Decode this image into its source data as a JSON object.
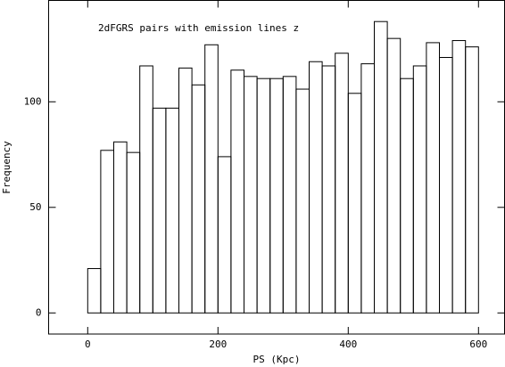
{
  "chart_data": {
    "type": "histogram",
    "title": "2dFGRS pairs with emission lines z",
    "xlabel": "PS (Kpc)",
    "ylabel": "Frequency",
    "bins": [
      -20,
      0,
      20,
      40,
      60,
      80,
      100,
      120,
      140,
      160,
      180,
      200,
      220,
      240,
      260,
      280,
      300,
      320,
      340,
      360,
      380,
      400,
      420,
      440,
      460,
      480,
      500,
      520,
      540,
      560,
      580,
      600
    ],
    "values": [
      0,
      21,
      77,
      81,
      76,
      117,
      97,
      97,
      116,
      108,
      127,
      74,
      115,
      112,
      111,
      111,
      112,
      106,
      119,
      117,
      123,
      104,
      118,
      138,
      130,
      111,
      117,
      128,
      121,
      129,
      126
    ],
    "color": "#000000",
    "xlim": [
      -60,
      640
    ],
    "ylim": [
      -10,
      148
    ],
    "xticks": [
      0,
      200,
      400,
      600
    ],
    "yticks": [
      0,
      50,
      100
    ]
  }
}
